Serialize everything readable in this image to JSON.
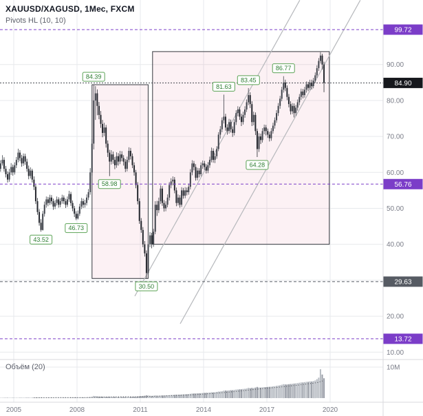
{
  "header": {
    "symbol_title": "XAUUSD/XAGUSD, 1Мес, FXCM",
    "indicator_label": "Pivots HL (10, 10)"
  },
  "volume_pane": {
    "label": "Объём (20)",
    "axis_label": "10M"
  },
  "colors": {
    "purple_level": "#7b3dc8",
    "last_price_line": "#42454d",
    "last_price_bg": "#16181d",
    "gray_level": "#565b63",
    "candle_up": "#3e424a",
    "candle_down": "#23262d",
    "grid": "#e7e9ec",
    "box_fill": "rgba(213,78,120,0.08)",
    "box_stroke": "#33363d",
    "trendline": "#b6b8bc",
    "pivot_border": "#5ba355",
    "pivot_text": "#2e7d32",
    "axis_text": "#787b86",
    "separator": "#d8dade",
    "vol_up": "#b6bbc2",
    "vol_down": "#989da6",
    "vol_ma": "#3f4248"
  },
  "chart_data": {
    "type": "candlestick",
    "title": "XAUUSD/XAGUSD, 1Мес, FXCM",
    "symbol": "XAUUSD/XAGUSD",
    "timeframe": "1Мес",
    "exchange": "FXCM",
    "last_price": 84.9,
    "ylim": [
      8,
      108
    ],
    "time_range": [
      2004.33,
      2022.5
    ],
    "start_year": 2004.3333,
    "price_axis_ticks": [
      {
        "label": "90.00",
        "price": 90
      },
      {
        "label": "80.00",
        "price": 80
      },
      {
        "label": "70.00",
        "price": 70
      },
      {
        "label": "60.00",
        "price": 60
      },
      {
        "label": "50.00",
        "price": 50
      },
      {
        "label": "40.00",
        "price": 40
      },
      {
        "label": "30.00",
        "price": 30
      },
      {
        "label": "20.00",
        "price": 20
      },
      {
        "label": "10.00",
        "price": 10
      }
    ],
    "time_axis_ticks": [
      {
        "label": "2005",
        "year": 2005
      },
      {
        "label": "2008",
        "year": 2008
      },
      {
        "label": "2011",
        "year": 2011
      },
      {
        "label": "2014",
        "year": 2014
      },
      {
        "label": "2017",
        "year": 2017
      },
      {
        "label": "2020",
        "year": 2020
      }
    ],
    "price_levels": [
      {
        "label": "99.72",
        "price": 99.72,
        "color": "#7b3dc8",
        "dash": "4,3",
        "badge_bg": "#7b3dc8"
      },
      {
        "label": "84.90",
        "price": 84.9,
        "color": "#42454d",
        "dash": "2,2",
        "badge_bg": "#16181d"
      },
      {
        "label": "56.76",
        "price": 56.76,
        "color": "#7b3dc8",
        "dash": "4,3",
        "badge_bg": "#7b3dc8"
      },
      {
        "label": "29.63",
        "price": 29.63,
        "color": "#565b63",
        "dash": "4,3",
        "badge_bg": "#565b63"
      },
      {
        "label": "13.72",
        "price": 13.72,
        "color": "#7b3dc8",
        "dash": "4,3",
        "badge_bg": "#7b3dc8"
      }
    ],
    "pivots": [
      {
        "label": "84.39",
        "price": 84.39,
        "t": 2008.79,
        "side": "high"
      },
      {
        "label": "46.73",
        "price": 46.73,
        "t": 2007.96,
        "side": "low"
      },
      {
        "label": "43.52",
        "price": 43.52,
        "t": 2006.29,
        "side": "low"
      },
      {
        "label": "58.98",
        "price": 58.98,
        "t": 2009.54,
        "side": "low"
      },
      {
        "label": "30.50",
        "price": 30.5,
        "t": 2011.29,
        "side": "low"
      },
      {
        "label": "81.63",
        "price": 81.63,
        "t": 2014.96,
        "side": "high"
      },
      {
        "label": "83.45",
        "price": 83.45,
        "t": 2016.13,
        "side": "high"
      },
      {
        "label": "64.28",
        "price": 64.28,
        "t": 2016.54,
        "side": "low"
      },
      {
        "label": "86.77",
        "price": 86.77,
        "t": 2017.79,
        "side": "high"
      }
    ],
    "boxes": [
      {
        "t1": 2008.71,
        "t2": 2011.37,
        "p1": 30.5,
        "p2": 84.39
      },
      {
        "t1": 2011.58,
        "t2": 2019.96,
        "p1": 40.0,
        "p2": 93.6
      }
    ],
    "trendlines": [
      {
        "t1": 2010.74,
        "p1": 25.6,
        "t2": 2018.56,
        "p2": 107.9
      },
      {
        "t1": 2012.89,
        "p1": 17.9,
        "t2": 2021.43,
        "p2": 107.9
      }
    ],
    "candles": [
      [
        61,
        63.4,
        60.2,
        62.5,
        0.08
      ],
      [
        62.5,
        64.8,
        61.9,
        63.5,
        0.1
      ],
      [
        63.5,
        64.2,
        60.2,
        61,
        0.09
      ],
      [
        61,
        61.8,
        58.6,
        59.5,
        0.1
      ],
      [
        59.5,
        60.3,
        57.2,
        58,
        0.11
      ],
      [
        58,
        61,
        57.4,
        60,
        0.1
      ],
      [
        60,
        62.6,
        59.3,
        61.5,
        0.1
      ],
      [
        61.5,
        62.2,
        59.1,
        60,
        0.11
      ],
      [
        60,
        62.8,
        59.4,
        62,
        0.11
      ],
      [
        62,
        64.3,
        61.2,
        63.5,
        0.12
      ],
      [
        63.5,
        66.6,
        62.8,
        65.5,
        0.12
      ],
      [
        65.5,
        66.2,
        63.1,
        64,
        0.11
      ],
      [
        64,
        64.9,
        61.6,
        62.5,
        0.12
      ],
      [
        62.5,
        65.3,
        61.8,
        64.5,
        0.12
      ],
      [
        64.5,
        65.2,
        62.1,
        63,
        0.12
      ],
      [
        63,
        63.8,
        60.2,
        61,
        0.13
      ],
      [
        61,
        61.9,
        58.1,
        59,
        0.13
      ],
      [
        59,
        61.4,
        58.3,
        60.5,
        0.12
      ],
      [
        60.5,
        61,
        57.2,
        58,
        0.13
      ],
      [
        58,
        58.9,
        55.1,
        56,
        0.14
      ],
      [
        56,
        56.6,
        51.2,
        52,
        0.15
      ],
      [
        52,
        52.9,
        48.2,
        49,
        0.16
      ],
      [
        49,
        49.8,
        45.2,
        46,
        0.17
      ],
      [
        46,
        47,
        43.52,
        44,
        0.18
      ],
      [
        44,
        49.3,
        43.8,
        48.5,
        0.17
      ],
      [
        48.5,
        51.9,
        47.7,
        51,
        0.16
      ],
      [
        51,
        53.3,
        50.2,
        52.5,
        0.15
      ],
      [
        52.5,
        53.2,
        50.6,
        51.5,
        0.15
      ],
      [
        51.5,
        53.8,
        50.9,
        53,
        0.15
      ],
      [
        53,
        53.7,
        51.1,
        52,
        0.15
      ],
      [
        52,
        52.7,
        49.6,
        50.5,
        0.16
      ],
      [
        50.5,
        52.3,
        49.8,
        51.5,
        0.15
      ],
      [
        51.5,
        53.3,
        50.8,
        52.5,
        0.16
      ],
      [
        52.5,
        53.1,
        50.2,
        51,
        0.16
      ],
      [
        51,
        52.8,
        50.3,
        52,
        0.16
      ],
      [
        52,
        53.8,
        51.3,
        53,
        0.17
      ],
      [
        53,
        53.6,
        51.2,
        52,
        0.17
      ],
      [
        52,
        52.7,
        50.1,
        51,
        0.17
      ],
      [
        51,
        53.3,
        50.4,
        52.5,
        0.18
      ],
      [
        52.5,
        54.9,
        51.8,
        54,
        0.18
      ],
      [
        54,
        54.6,
        50.7,
        51.5,
        0.19
      ],
      [
        51.5,
        52.2,
        49.2,
        50,
        0.19
      ],
      [
        50,
        50.7,
        47.6,
        48.5,
        0.2
      ],
      [
        48.5,
        49.2,
        46.73,
        47.2,
        0.2
      ],
      [
        47.2,
        49.4,
        46.9,
        48.5,
        0.21
      ],
      [
        48.5,
        51.3,
        47.9,
        50.5,
        0.22
      ],
      [
        50.5,
        52.9,
        49.8,
        52,
        0.24
      ],
      [
        52,
        52.7,
        50.1,
        51,
        0.22
      ],
      [
        51,
        52.4,
        50.2,
        51.5,
        0.22
      ],
      [
        51.5,
        53.9,
        50.8,
        53,
        0.25
      ],
      [
        53,
        55.4,
        52.3,
        54.5,
        0.28
      ],
      [
        54.5,
        61.2,
        53.8,
        60,
        0.35
      ],
      [
        60,
        69.3,
        59.1,
        68,
        0.45
      ],
      [
        68,
        84.39,
        66.4,
        80,
        0.7
      ],
      [
        80,
        84,
        74.6,
        82,
        0.62
      ],
      [
        82,
        83.1,
        75.9,
        78.5,
        0.55
      ],
      [
        78.5,
        79.6,
        74.8,
        76,
        0.5
      ],
      [
        76,
        77.1,
        72.4,
        73.5,
        0.48
      ],
      [
        73.5,
        74.6,
        69.8,
        71,
        0.46
      ],
      [
        71,
        73.8,
        70.1,
        72.5,
        0.44
      ],
      [
        72.5,
        73.2,
        66.9,
        68,
        0.45
      ],
      [
        68,
        68.9,
        64.3,
        65.5,
        0.42
      ],
      [
        65.5,
        66.3,
        58.98,
        63,
        0.45
      ],
      [
        63,
        66.2,
        62.2,
        65,
        0.4
      ],
      [
        65,
        65.8,
        62.4,
        63.5,
        0.4
      ],
      [
        63.5,
        64.3,
        60.9,
        62,
        0.42
      ],
      [
        62,
        65.6,
        61.3,
        64.5,
        0.4
      ],
      [
        64.5,
        65.4,
        61.9,
        63,
        0.41
      ],
      [
        63,
        66,
        62.3,
        65,
        0.4
      ],
      [
        65,
        65.9,
        63.1,
        64,
        0.4
      ],
      [
        64,
        64.8,
        61.9,
        63,
        0.41
      ],
      [
        63,
        63.7,
        60.1,
        61,
        0.42
      ],
      [
        61,
        64.4,
        60.3,
        63.5,
        0.42
      ],
      [
        63.5,
        67,
        62.8,
        66,
        0.44
      ],
      [
        66,
        66.8,
        63.6,
        64.5,
        0.44
      ],
      [
        64.5,
        65.3,
        61.2,
        62,
        0.45
      ],
      [
        62,
        62.8,
        59.1,
        60,
        0.46
      ],
      [
        60,
        60.7,
        55.6,
        56.5,
        0.5
      ],
      [
        56.5,
        57.3,
        51.1,
        52,
        0.55
      ],
      [
        52,
        52.8,
        45.7,
        46.5,
        0.6
      ],
      [
        46.5,
        47.3,
        43.2,
        44,
        0.65
      ],
      [
        44,
        44.8,
        39.2,
        40,
        0.7
      ],
      [
        40,
        40.9,
        36.6,
        37.5,
        0.75
      ],
      [
        37.5,
        38.3,
        30.5,
        32,
        0.9
      ],
      [
        32,
        41,
        31.6,
        40,
        0.85
      ],
      [
        40,
        43.4,
        39.2,
        42.5,
        0.75
      ],
      [
        42.5,
        43.2,
        38.9,
        40,
        0.72
      ],
      [
        40,
        44.3,
        39.3,
        43.5,
        0.75
      ],
      [
        43.5,
        52,
        42.8,
        51,
        0.85
      ],
      [
        51,
        52.1,
        47.9,
        49.5,
        0.78
      ],
      [
        49.5,
        53,
        48.7,
        52,
        0.75
      ],
      [
        52,
        56.4,
        51.2,
        55.5,
        0.8
      ],
      [
        55.5,
        56.2,
        50.7,
        51.5,
        0.85
      ],
      [
        51.5,
        52.3,
        49.1,
        50,
        0.85
      ],
      [
        50,
        52,
        49.2,
        51,
        0.9
      ],
      [
        51,
        53.9,
        50.3,
        53,
        0.92
      ],
      [
        53,
        57.3,
        52.2,
        56.5,
        0.95
      ],
      [
        56.5,
        58.4,
        55.6,
        57.5,
        1
      ],
      [
        57.5,
        58.9,
        56.4,
        58,
        1
      ],
      [
        58,
        58.7,
        54.2,
        55,
        1.05
      ],
      [
        55,
        55.8,
        50.6,
        51.5,
        1.1
      ],
      [
        51.5,
        53.9,
        50.8,
        53,
        1.08
      ],
      [
        53,
        53.7,
        50.2,
        51,
        1.1
      ],
      [
        51,
        55.9,
        50.4,
        55,
        1.15
      ],
      [
        55,
        55.7,
        52.7,
        53.5,
        1.2
      ],
      [
        53.5,
        55.9,
        52.8,
        55,
        1.22
      ],
      [
        55,
        55.8,
        53.6,
        54.5,
        1.25
      ],
      [
        54.5,
        56.9,
        53.8,
        56,
        1.3
      ],
      [
        56,
        60.9,
        55.3,
        60,
        1.4
      ],
      [
        60,
        63.4,
        59.2,
        62.5,
        1.5
      ],
      [
        62.5,
        63.2,
        60.6,
        61.5,
        1.48
      ],
      [
        61.5,
        62.3,
        57.7,
        58.5,
        1.5
      ],
      [
        58.5,
        61.3,
        57.8,
        60.5,
        1.55
      ],
      [
        60.5,
        61.2,
        58.6,
        59.5,
        1.55
      ],
      [
        59.5,
        62.8,
        58.9,
        62,
        1.6
      ],
      [
        62,
        63.3,
        61,
        62.5,
        1.65
      ],
      [
        62.5,
        63.2,
        60.7,
        61.5,
        1.7
      ],
      [
        61.5,
        62.3,
        59.7,
        60.5,
        1.72
      ],
      [
        60.5,
        62.9,
        59.8,
        62,
        1.75
      ],
      [
        62,
        64.4,
        61.3,
        63.5,
        1.8
      ],
      [
        63.5,
        66.9,
        62.8,
        66,
        1.9
      ],
      [
        66,
        66.7,
        62.7,
        63.5,
        1.85
      ],
      [
        63.5,
        65.3,
        62.6,
        64.5,
        1.9
      ],
      [
        64.5,
        67.3,
        63.8,
        66.5,
        2
      ],
      [
        66.5,
        71.2,
        65.9,
        70.5,
        2.1
      ],
      [
        70.5,
        72.9,
        69.4,
        72,
        2.15
      ],
      [
        72,
        75.3,
        71.2,
        74.5,
        2.25
      ],
      [
        74.5,
        81.63,
        73.6,
        75.5,
        2.4
      ],
      [
        75.5,
        76.3,
        71.6,
        72.5,
        2.45
      ],
      [
        72.5,
        73.4,
        70.5,
        71.5,
        2.4
      ],
      [
        71.5,
        74.9,
        70.8,
        74,
        2.5
      ],
      [
        74,
        74.7,
        71.1,
        72,
        2.55
      ],
      [
        72,
        72.8,
        69.9,
        71,
        2.55
      ],
      [
        71,
        74.8,
        70.3,
        74,
        2.65
      ],
      [
        74,
        77.3,
        73.2,
        76.5,
        2.75
      ],
      [
        76.5,
        78.4,
        75.6,
        77.5,
        2.8
      ],
      [
        77.5,
        78.2,
        74.6,
        75.5,
        2.85
      ],
      [
        75.5,
        76.3,
        72.9,
        74,
        2.85
      ],
      [
        74,
        76.9,
        73.3,
        76,
        2.95
      ],
      [
        76,
        78.4,
        75.2,
        77.5,
        3
      ],
      [
        77.5,
        80.3,
        76.8,
        79.5,
        3.1
      ],
      [
        79.5,
        83.45,
        78.7,
        81.5,
        3.3
      ],
      [
        81.5,
        82.3,
        77.9,
        79,
        3.2
      ],
      [
        79,
        79.8,
        72.9,
        74,
        3.3
      ],
      [
        74,
        76.9,
        73.1,
        76,
        3.25
      ],
      [
        76,
        76.7,
        70.4,
        71.5,
        3.4
      ],
      [
        71.5,
        72.2,
        64.28,
        66.5,
        3.6
      ],
      [
        66.5,
        70.9,
        65.7,
        70,
        3.45
      ],
      [
        70,
        70.8,
        67.9,
        69,
        3.4
      ],
      [
        69,
        72.3,
        68.3,
        71.5,
        3.5
      ],
      [
        71.5,
        73.3,
        70.6,
        72.5,
        3.55
      ],
      [
        72.5,
        73.2,
        70.3,
        71.5,
        3.55
      ],
      [
        71.5,
        72.2,
        69.6,
        70.5,
        3.6
      ],
      [
        70.5,
        71.3,
        68.6,
        69.5,
        3.65
      ],
      [
        69.5,
        72.3,
        68.8,
        71.5,
        3.7
      ],
      [
        71.5,
        73.8,
        70.8,
        73,
        3.8
      ],
      [
        73,
        75.3,
        72.2,
        74.5,
        3.85
      ],
      [
        74.5,
        77.3,
        73.8,
        76.5,
        3.95
      ],
      [
        76.5,
        79.3,
        75.7,
        78.5,
        4.05
      ],
      [
        78.5,
        81.3,
        77.7,
        80.5,
        4.15
      ],
      [
        80.5,
        83.8,
        79.8,
        83,
        4.3
      ],
      [
        83,
        86.77,
        82.2,
        85,
        4.5
      ],
      [
        85,
        85.8,
        82.6,
        83.5,
        4.4
      ],
      [
        83.5,
        84.2,
        80.1,
        81,
        4.4
      ],
      [
        81,
        81.8,
        78.1,
        79,
        4.5
      ],
      [
        79,
        79.8,
        76.1,
        77,
        4.55
      ],
      [
        77,
        79.3,
        76.2,
        78.5,
        4.6
      ],
      [
        78.5,
        79.2,
        75.3,
        76.5,
        4.7
      ],
      [
        76.5,
        78.8,
        75.7,
        78,
        4.75
      ],
      [
        78,
        80.3,
        77.2,
        79.5,
        4.85
      ],
      [
        79.5,
        81.8,
        78.7,
        81,
        4.95
      ],
      [
        81,
        83.3,
        80.2,
        82.5,
        5.05
      ],
      [
        82.5,
        83.2,
        80.6,
        81.5,
        5.05
      ],
      [
        81.5,
        83.8,
        80.8,
        83,
        5.15
      ],
      [
        83,
        85.3,
        82.2,
        84.5,
        5.25
      ],
      [
        84.5,
        85.2,
        82.6,
        83.5,
        5.25
      ],
      [
        83.5,
        85.8,
        82.9,
        85,
        5.4
      ],
      [
        85,
        85.8,
        83.1,
        84,
        5.35
      ],
      [
        84,
        86.3,
        83.4,
        85.5,
        5.5
      ],
      [
        85.5,
        87.8,
        84.9,
        87,
        5.7
      ],
      [
        87,
        89.8,
        86.3,
        89,
        6.1
      ],
      [
        89,
        91.8,
        88.2,
        91,
        6.6
      ],
      [
        91,
        93.44,
        90.3,
        92.5,
        9.3
      ],
      [
        92.5,
        93,
        88.6,
        90,
        7.6
      ],
      [
        90,
        90.8,
        82.3,
        84.9,
        6.4
      ]
    ]
  }
}
